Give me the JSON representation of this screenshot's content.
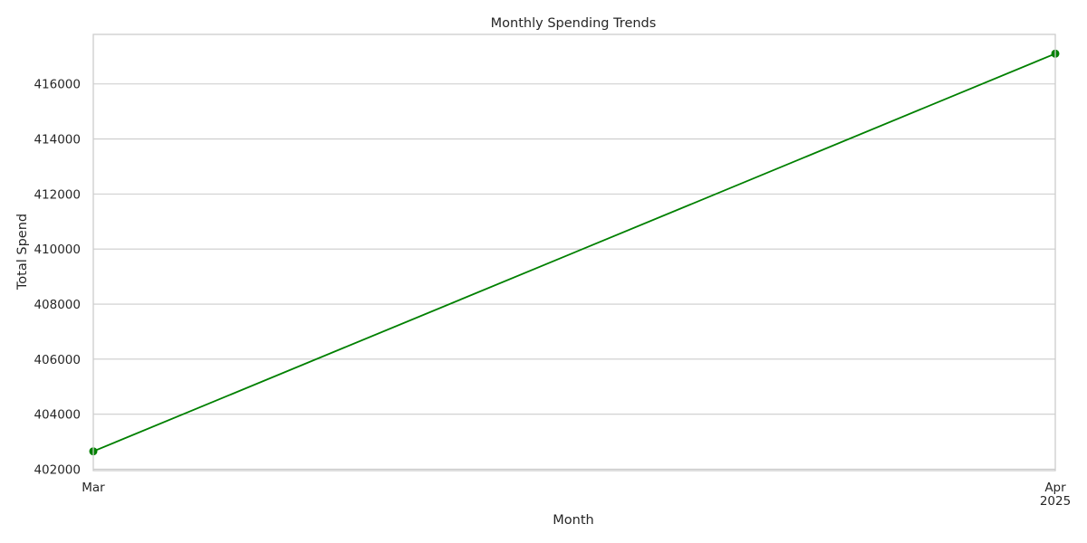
{
  "chart_data": {
    "type": "line",
    "title": "Monthly Spending Trends",
    "xlabel": "Month",
    "ylabel": "Total Spend",
    "x": [
      "2025-03",
      "2025-04"
    ],
    "x_tick_labels": [
      "Mar",
      "Apr"
    ],
    "x_tick_sublabels": [
      "",
      "2025"
    ],
    "series": [
      {
        "values": [
          402650,
          417100
        ],
        "color": "#008000",
        "marker": "circle"
      }
    ],
    "ylim": [
      401950,
      417800
    ],
    "y_ticks": [
      402000,
      404000,
      406000,
      408000,
      410000,
      412000,
      414000,
      416000
    ],
    "grid": "horizontal",
    "legend": "none"
  }
}
